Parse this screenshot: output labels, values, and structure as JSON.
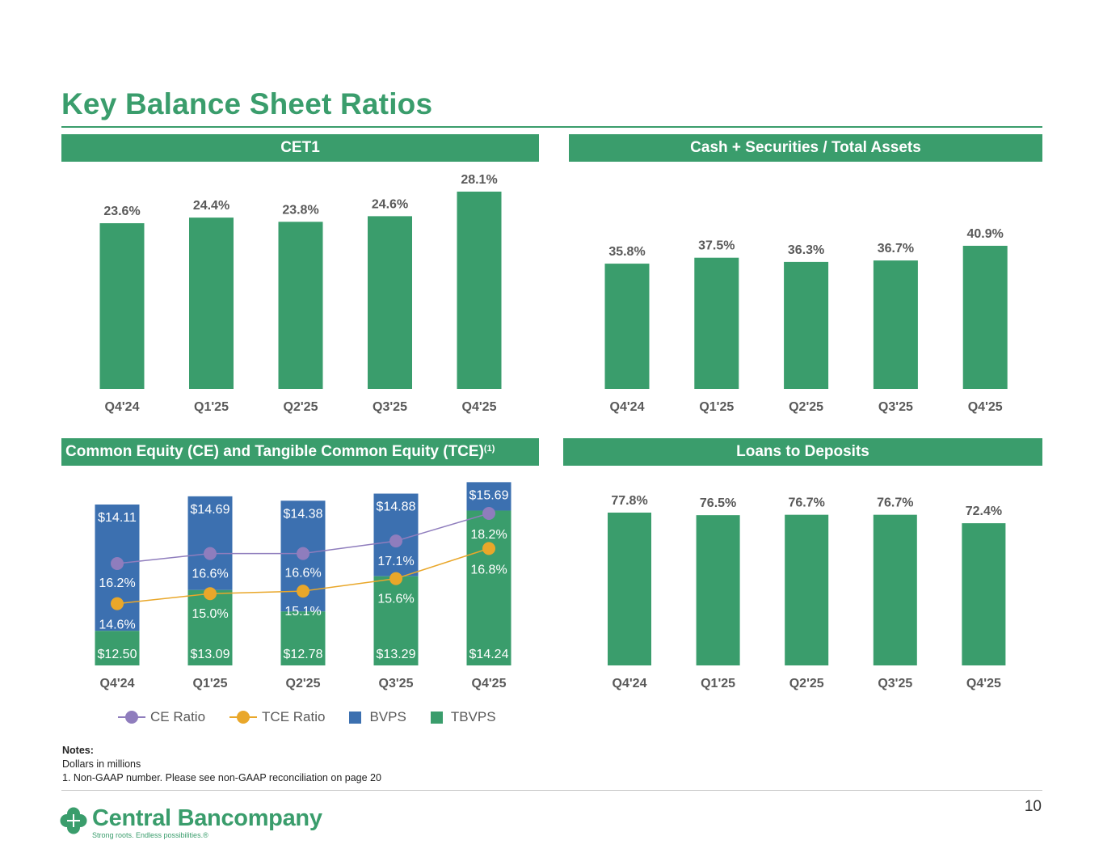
{
  "page": {
    "title": "Key Balance Sheet Ratios",
    "page_number": "10",
    "notes": {
      "heading": "Notes:",
      "lines": [
        "Dollars in millions",
        "1. Non-GAAP number.  Please see non-GAAP reconciliation on page 20"
      ]
    },
    "logo": {
      "name": "Central Bancompany",
      "tagline": "Strong roots. Endless possibilities.®"
    }
  },
  "colors": {
    "green": "#3a9d6c",
    "blue": "#3c70b0",
    "purple": "#8f7dbd",
    "orange": "#e9a72a",
    "label": "#595959"
  },
  "panels": {
    "cet1": {
      "header": "CET1"
    },
    "cash": {
      "header": "Cash + Securities / Total Assets"
    },
    "equity": {
      "header_main": "Common Equity (CE) and Tangible Common Equity (TCE)",
      "header_sup": "(1)"
    },
    "loans": {
      "header": "Loans to Deposits"
    }
  },
  "legend": [
    {
      "label": "CE Ratio",
      "kind": "line",
      "color": "#8f7dbd"
    },
    {
      "label": "TCE Ratio",
      "kind": "line",
      "color": "#e9a72a"
    },
    {
      "label": "BVPS",
      "kind": "box",
      "color": "#3c70b0"
    },
    {
      "label": "TBVPS",
      "kind": "box",
      "color": "#3a9d6c"
    }
  ],
  "chart_data": [
    {
      "id": "cet1",
      "type": "bar",
      "title": "CET1",
      "categories": [
        "Q4'24",
        "Q1'25",
        "Q2'25",
        "Q3'25",
        "Q4'25"
      ],
      "values": [
        23.6,
        24.4,
        23.8,
        24.6,
        28.1
      ],
      "labels": [
        "23.6%",
        "24.4%",
        "23.8%",
        "24.6%",
        "28.1%"
      ]
    },
    {
      "id": "cash",
      "type": "bar",
      "title": "Cash + Securities / Total Assets",
      "categories": [
        "Q4'24",
        "Q1'25",
        "Q2'25",
        "Q3'25",
        "Q4'25"
      ],
      "values": [
        35.8,
        37.5,
        36.3,
        36.7,
        40.9
      ],
      "labels": [
        "35.8%",
        "37.5%",
        "36.3%",
        "36.7%",
        "40.9%"
      ]
    },
    {
      "id": "equity",
      "type": "bar",
      "title": "Common Equity (CE) and Tangible Common Equity (TCE)",
      "categories": [
        "Q4'24",
        "Q1'25",
        "Q2'25",
        "Q3'25",
        "Q4'25"
      ],
      "series": [
        {
          "name": "TBVPS",
          "kind": "bar",
          "values": [
            12.5,
            13.09,
            12.78,
            13.29,
            14.24
          ],
          "labels": [
            "$12.50",
            "$13.09",
            "$12.78",
            "$13.29",
            "$14.24"
          ]
        },
        {
          "name": "BVPS",
          "kind": "bar",
          "values": [
            14.11,
            14.69,
            14.38,
            14.88,
            15.69
          ],
          "labels": [
            "$14.11",
            "$14.69",
            "$14.38",
            "$14.88",
            "$15.69"
          ]
        },
        {
          "name": "CE Ratio",
          "kind": "line",
          "values": [
            16.2,
            16.6,
            16.6,
            17.1,
            18.2
          ],
          "labels": [
            "16.2%",
            "16.6%",
            "16.6%",
            "17.1%",
            "18.2%"
          ]
        },
        {
          "name": "TCE Ratio",
          "kind": "line",
          "values": [
            14.6,
            15.0,
            15.1,
            15.6,
            16.8
          ],
          "labels": [
            "14.6%",
            "15.0%",
            "15.1%",
            "15.6%",
            "16.8%"
          ]
        }
      ]
    },
    {
      "id": "loans",
      "type": "bar",
      "title": "Loans to Deposits",
      "categories": [
        "Q4'24",
        "Q1'25",
        "Q2'25",
        "Q3'25",
        "Q4'25"
      ],
      "values": [
        77.8,
        76.5,
        76.7,
        76.7,
        72.4
      ],
      "labels": [
        "77.8%",
        "76.5%",
        "76.7%",
        "76.7%",
        "72.4%"
      ]
    }
  ]
}
